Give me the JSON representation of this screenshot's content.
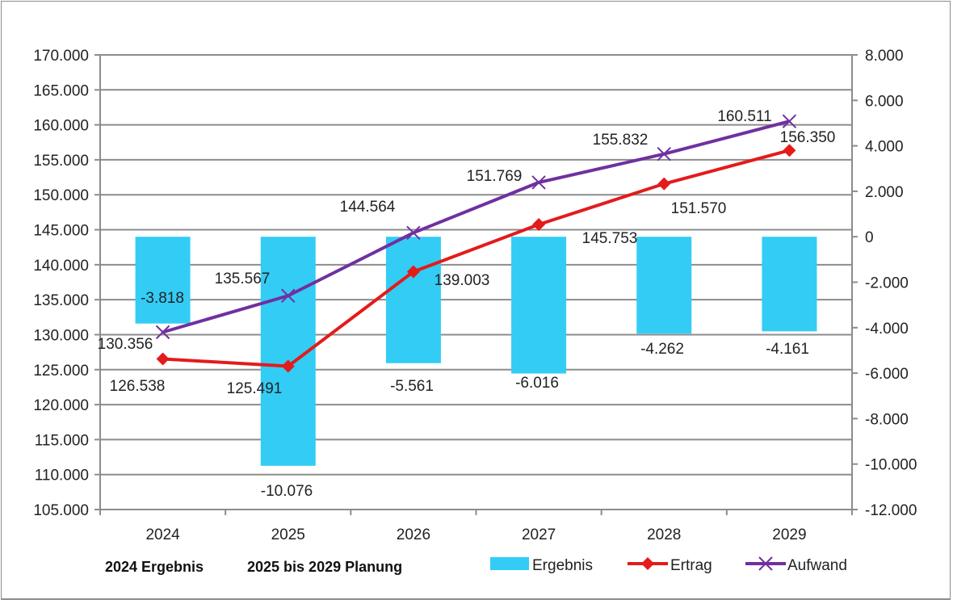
{
  "chart_data": {
    "type": "bar+line",
    "title": "",
    "categories": [
      "2024",
      "2025",
      "2026",
      "2027",
      "2028",
      "2029"
    ],
    "left_axis": {
      "range": [
        105000,
        170000
      ],
      "ticks": [
        105000,
        110000,
        115000,
        120000,
        125000,
        130000,
        135000,
        140000,
        145000,
        150000,
        155000,
        160000,
        165000,
        170000
      ],
      "tick_labels": [
        "105.000",
        "110.000",
        "115.000",
        "120.000",
        "125.000",
        "130.000",
        "135.000",
        "140.000",
        "145.000",
        "150.000",
        "155.000",
        "160.000",
        "165.000",
        "170.000"
      ]
    },
    "right_axis": {
      "range": [
        -12000,
        8000
      ],
      "ticks": [
        -12000,
        -10000,
        -8000,
        -6000,
        -4000,
        -2000,
        0,
        2000,
        4000,
        6000,
        8000
      ],
      "tick_labels": [
        "-12.000",
        "-10.000",
        "-8.000",
        "-6.000",
        "-4.000",
        "-2.000",
        "0",
        "2.000",
        "4.000",
        "6.000",
        "8.000"
      ]
    },
    "grid": true,
    "legend_position": "bottom-right",
    "series": [
      {
        "name": "Ergebnis",
        "type": "bar",
        "axis": "right",
        "color": "#33ccf5",
        "values": [
          -3818,
          -10076,
          -5561,
          -6016,
          -4262,
          -4161
        ],
        "labels": [
          "-3.818",
          "-10.076",
          "-5.561",
          "-6.016",
          "-4.262",
          "-4.161"
        ]
      },
      {
        "name": "Ertrag",
        "type": "line",
        "axis": "left",
        "color": "#e31b1b",
        "marker": "diamond",
        "values": [
          126538,
          125491,
          139003,
          145753,
          151570,
          156350
        ],
        "labels": [
          "126.538",
          "125.491",
          "139.003",
          "145.753",
          "151.570",
          "156.350"
        ]
      },
      {
        "name": "Aufwand",
        "type": "line",
        "axis": "left",
        "color": "#7030a0",
        "marker": "x",
        "values": [
          130356,
          135567,
          144564,
          151769,
          155832,
          160511
        ],
        "labels": [
          "130.356",
          "135.567",
          "144.564",
          "151.769",
          "155.832",
          "160.511"
        ]
      }
    ],
    "annotations": [
      "2024 Ergebnis",
      "2025 bis 2029 Planung"
    ]
  }
}
